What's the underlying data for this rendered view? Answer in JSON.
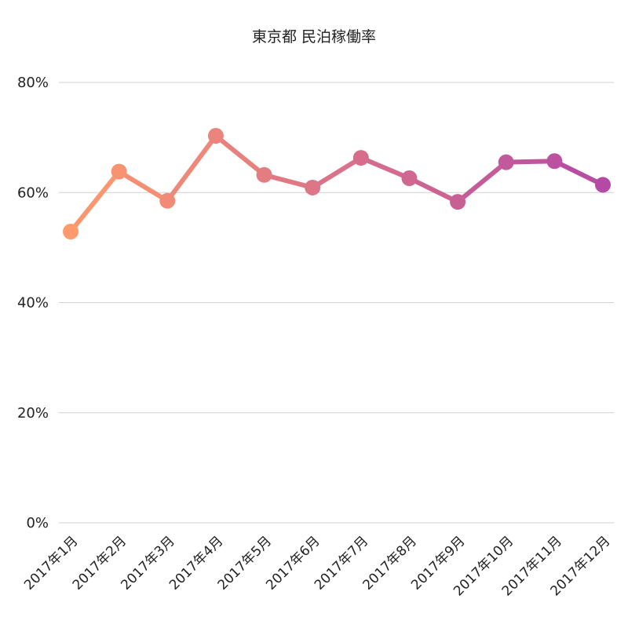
{
  "chart_data": {
    "type": "line",
    "title": "東京都 民泊稼働率",
    "xlabel": "",
    "ylabel": "",
    "categories": [
      "2017年1月",
      "2017年2月",
      "2017年3月",
      "2017年4月",
      "2017年5月",
      "2017年6月",
      "2017年7月",
      "2017年8月",
      "2017年9月",
      "2017年10月",
      "2017年11月",
      "2017年12月"
    ],
    "series": [
      {
        "values": [
          52.9,
          63.8,
          58.5,
          70.3,
          63.2,
          60.9,
          66.3,
          62.6,
          58.3,
          65.5,
          65.7,
          61.4
        ]
      }
    ],
    "ylim": [
      0,
      80
    ],
    "yticks": [
      0,
      20,
      40,
      60,
      80
    ],
    "ytick_labels": [
      "0%",
      "20%",
      "40%",
      "60%",
      "80%"
    ],
    "grid": true,
    "legend": "none",
    "colors": {
      "start": "#ff9a6c",
      "end": "#b44aa5"
    }
  }
}
